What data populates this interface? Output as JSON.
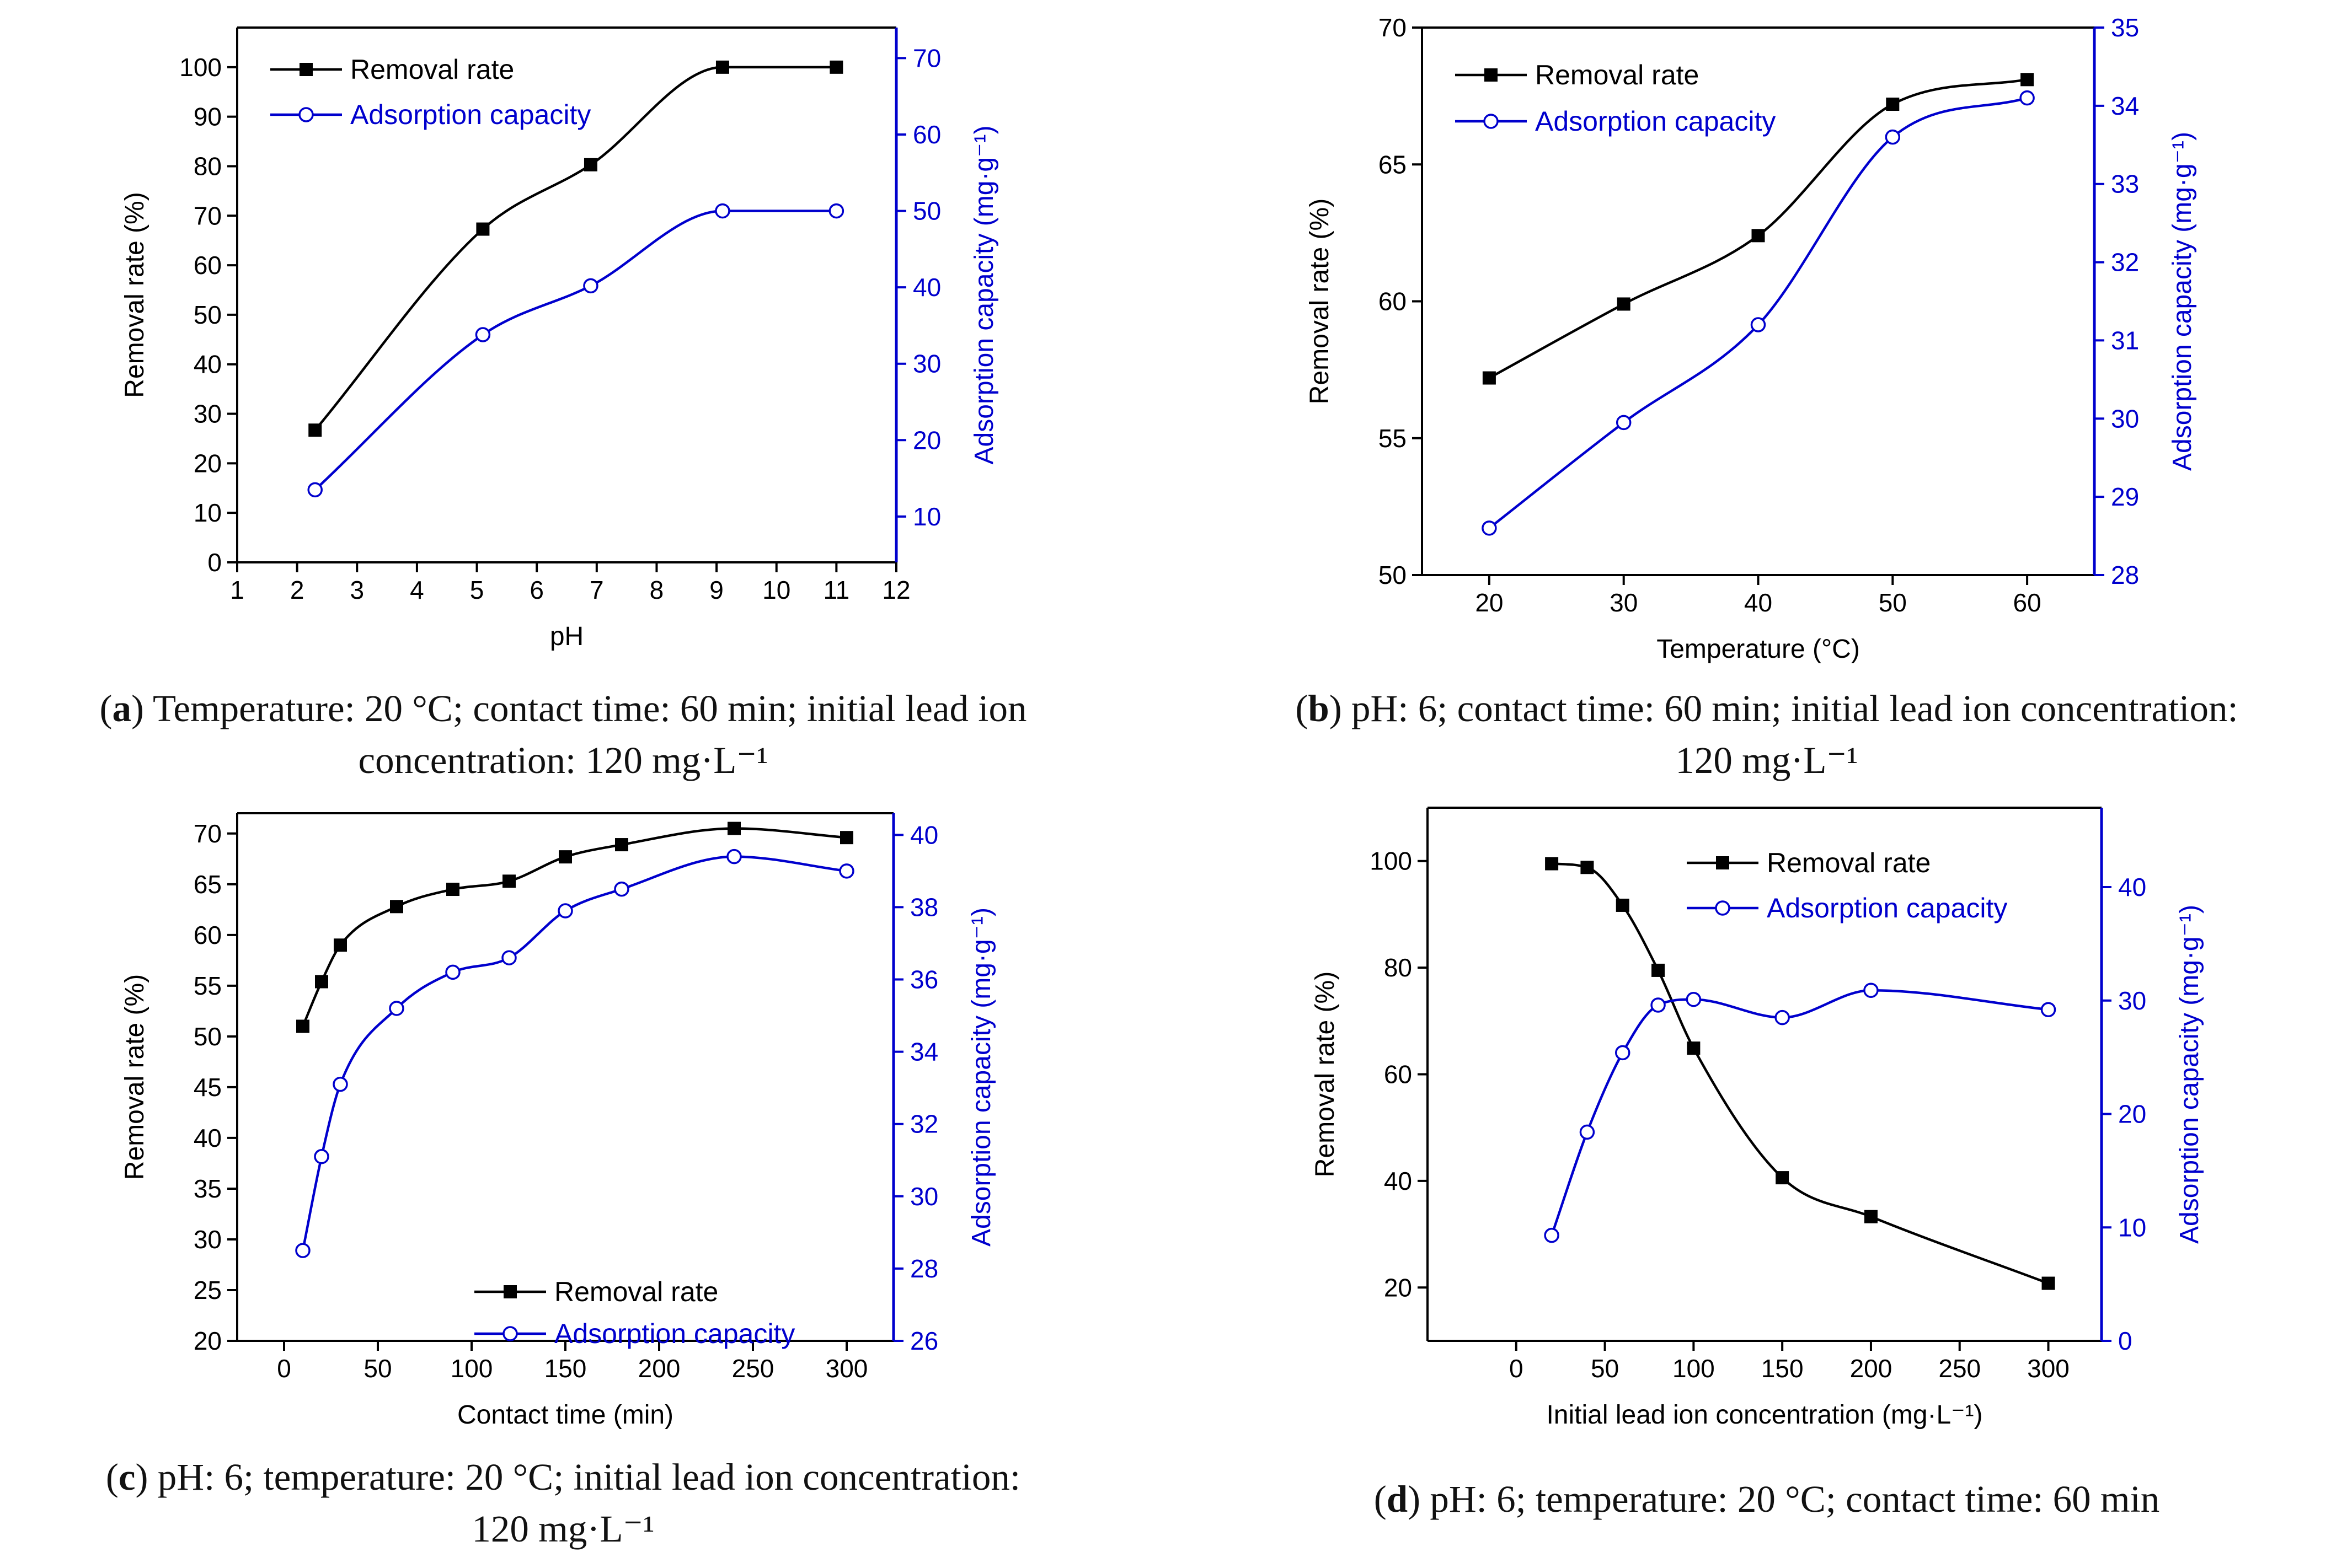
{
  "captions": [
    {
      "letter": "a",
      "line1": "Temperature: 20 °C; contact time: 60 min; initial lead ion",
      "line2": "concentration: 120 mg·L⁻¹"
    },
    {
      "letter": "b",
      "line1": "pH: 6; contact time: 60 min; initial lead ion concentration:",
      "line2": "120 mg·L⁻¹"
    },
    {
      "letter": "c",
      "line1": "pH: 6; temperature: 20 °C; initial lead ion concentration:",
      "line2": "120 mg·L⁻¹"
    },
    {
      "letter": "d",
      "line1": "pH: 6; temperature: 20 °C; contact time: 60 min",
      "line2": ""
    }
  ],
  "chart_data": [
    {
      "id": "a",
      "type": "line",
      "xlabel": "pH",
      "ylabel": "Removal rate (%)",
      "y2label": "Adsorption capacity (mg·g⁻¹)",
      "xlim": [
        1,
        12
      ],
      "xticks": [
        1,
        2,
        3,
        4,
        5,
        6,
        7,
        8,
        9,
        10,
        11,
        12
      ],
      "ylim": [
        0,
        108
      ],
      "yticks": [
        0,
        10,
        20,
        30,
        40,
        50,
        60,
        70,
        80,
        90,
        100
      ],
      "y2lim": [
        4,
        74
      ],
      "y2ticks": [
        10,
        20,
        30,
        40,
        50,
        60,
        70
      ],
      "legend": "top-left",
      "legend_labels": [
        "Removal rate",
        "Adsorption capacity"
      ],
      "series": [
        {
          "name": "Removal rate",
          "axis": "left",
          "color": "#000000",
          "marker": "square",
          "x": [
            2.3,
            5.1,
            6.9,
            9.1,
            11.0
          ],
          "y": [
            26.7,
            67.3,
            80.3,
            100.0,
            100.0
          ]
        },
        {
          "name": "Adsorption capacity",
          "axis": "right",
          "color": "#0000CD",
          "marker": "circle",
          "x": [
            2.3,
            5.1,
            6.9,
            9.1,
            11.0
          ],
          "y": [
            13.5,
            33.8,
            40.2,
            50.0,
            50.0
          ]
        }
      ]
    },
    {
      "id": "b",
      "type": "line",
      "xlabel": "Temperature (°C)",
      "ylabel": "Removal rate (%)",
      "y2label": "Adsorption capacity (mg·g⁻¹)",
      "xlim": [
        15,
        65
      ],
      "xticks": [
        20,
        30,
        40,
        50,
        60
      ],
      "ylim": [
        50,
        70
      ],
      "yticks": [
        50,
        55,
        60,
        65,
        70
      ],
      "y2lim": [
        28,
        35
      ],
      "y2ticks": [
        28,
        29,
        30,
        31,
        32,
        33,
        34,
        35
      ],
      "legend": "top-left",
      "legend_labels": [
        "Removal rate",
        "Adsorption capacity"
      ],
      "series": [
        {
          "name": "Removal rate",
          "axis": "left",
          "color": "#000000",
          "marker": "square",
          "x": [
            20,
            30,
            40,
            50,
            60
          ],
          "y": [
            57.2,
            59.9,
            62.4,
            67.2,
            68.1
          ]
        },
        {
          "name": "Adsorption capacity",
          "axis": "right",
          "color": "#0000CD",
          "marker": "circle",
          "x": [
            20,
            30,
            40,
            50,
            60
          ],
          "y": [
            28.6,
            29.95,
            31.2,
            33.6,
            34.1
          ]
        }
      ]
    },
    {
      "id": "c",
      "type": "line",
      "xlabel": "Contact time (min)",
      "ylabel": "Removal rate (%)",
      "y2label": "Adsorption capacity (mg·g⁻¹)",
      "xlim": [
        -25,
        325
      ],
      "xticks": [
        0,
        50,
        100,
        150,
        200,
        250,
        300
      ],
      "ylim": [
        20,
        72
      ],
      "yticks": [
        20,
        25,
        30,
        35,
        40,
        45,
        50,
        55,
        60,
        65,
        70
      ],
      "y2lim": [
        26,
        40.6
      ],
      "y2ticks": [
        26,
        28,
        30,
        32,
        34,
        36,
        38,
        40
      ],
      "legend": "center-right",
      "legend_labels": [
        "Removal rate",
        "Adsorption capacity"
      ],
      "series": [
        {
          "name": "Removal rate",
          "axis": "left",
          "color": "#000000",
          "marker": "square",
          "x": [
            10,
            20,
            30,
            60,
            90,
            120,
            150,
            180,
            240,
            300
          ],
          "y": [
            51.0,
            55.4,
            59.0,
            62.8,
            64.5,
            65.3,
            67.7,
            68.9,
            70.5,
            69.6
          ]
        },
        {
          "name": "Adsorption capacity",
          "axis": "right",
          "color": "#0000CD",
          "marker": "circle",
          "x": [
            10,
            20,
            30,
            60,
            90,
            120,
            150,
            180,
            240,
            300
          ],
          "y": [
            28.5,
            31.1,
            33.1,
            35.2,
            36.2,
            36.6,
            37.9,
            38.5,
            39.4,
            39.0
          ]
        }
      ]
    },
    {
      "id": "d",
      "type": "line",
      "xlabel": "Initial lead ion concentration (mg·L⁻¹)",
      "ylabel": "Removal rate (%)",
      "y2label": "Adsorption capacity (mg·g⁻¹)",
      "xlim": [
        -50,
        330
      ],
      "xticks": [
        0,
        50,
        100,
        150,
        200,
        250,
        300
      ],
      "ylim": [
        10,
        110
      ],
      "yticks": [
        20,
        40,
        60,
        80,
        100
      ],
      "y2lim": [
        0,
        47
      ],
      "y2ticks": [
        0,
        10,
        20,
        30,
        40
      ],
      "legend": "top-right",
      "legend_labels": [
        "Removal rate",
        "Adsorption capacity"
      ],
      "series": [
        {
          "name": "Removal rate",
          "axis": "left",
          "color": "#000000",
          "marker": "square",
          "x": [
            20,
            40,
            60,
            80,
            100,
            150,
            200,
            300
          ],
          "y": [
            99.5,
            98.8,
            91.7,
            79.5,
            64.9,
            40.6,
            33.3,
            20.8
          ]
        },
        {
          "name": "Adsorption capacity",
          "axis": "right",
          "color": "#0000CD",
          "marker": "circle",
          "x": [
            20,
            40,
            60,
            80,
            100,
            150,
            200,
            300
          ],
          "y": [
            9.3,
            18.4,
            25.4,
            29.6,
            30.1,
            28.5,
            30.9,
            29.2
          ]
        }
      ]
    }
  ]
}
